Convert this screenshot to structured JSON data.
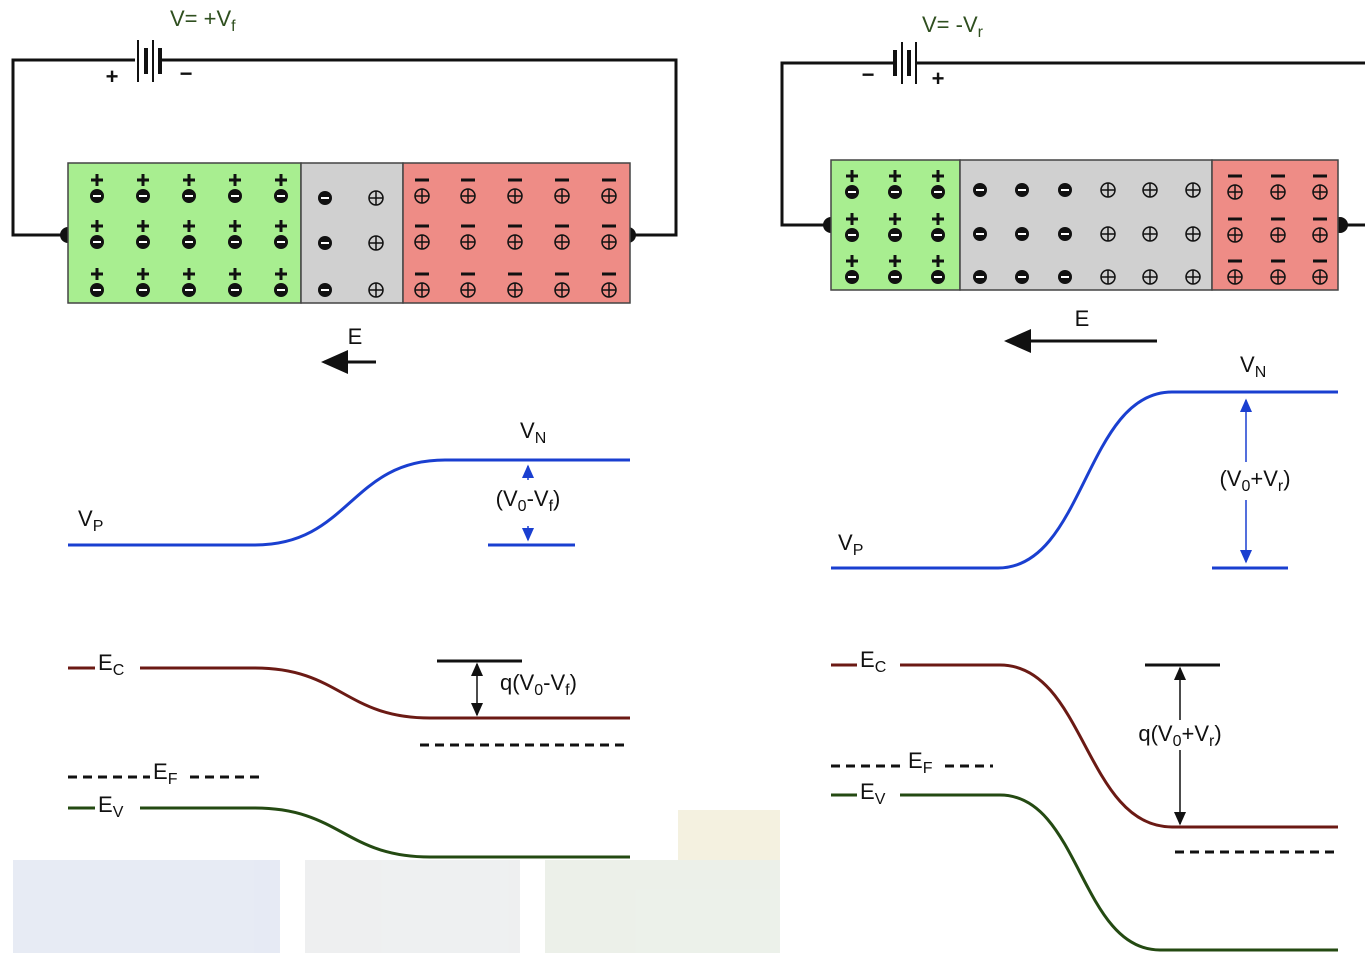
{
  "left": {
    "battery_label": [
      "V= +V",
      "f"
    ],
    "battery_plus": "+",
    "battery_minus": "−",
    "field": "E",
    "v_p": [
      "V",
      "P"
    ],
    "v_n": [
      "V",
      "N"
    ],
    "potential_step": [
      "(V",
      "0",
      "-V",
      "f",
      ")"
    ],
    "e_c": [
      "E",
      "C"
    ],
    "e_f": [
      "E",
      "F"
    ],
    "e_v": [
      "E",
      "V"
    ],
    "energy_step": [
      "q(V",
      "0",
      "-V",
      "f",
      ")"
    ]
  },
  "right": {
    "battery_label": [
      "V= -V",
      "r"
    ],
    "battery_plus": "+",
    "battery_minus": "−",
    "field": "E",
    "v_p": [
      "V",
      "P"
    ],
    "v_n": [
      "V",
      "N"
    ],
    "potential_step": [
      "(V",
      "0",
      "+V",
      "r",
      ")"
    ],
    "e_c": [
      "E",
      "C"
    ],
    "e_f": [
      "E",
      "F"
    ],
    "e_v": [
      "E",
      "V"
    ],
    "energy_step": [
      "q(V",
      "0",
      "+V",
      "r",
      ")"
    ]
  }
}
